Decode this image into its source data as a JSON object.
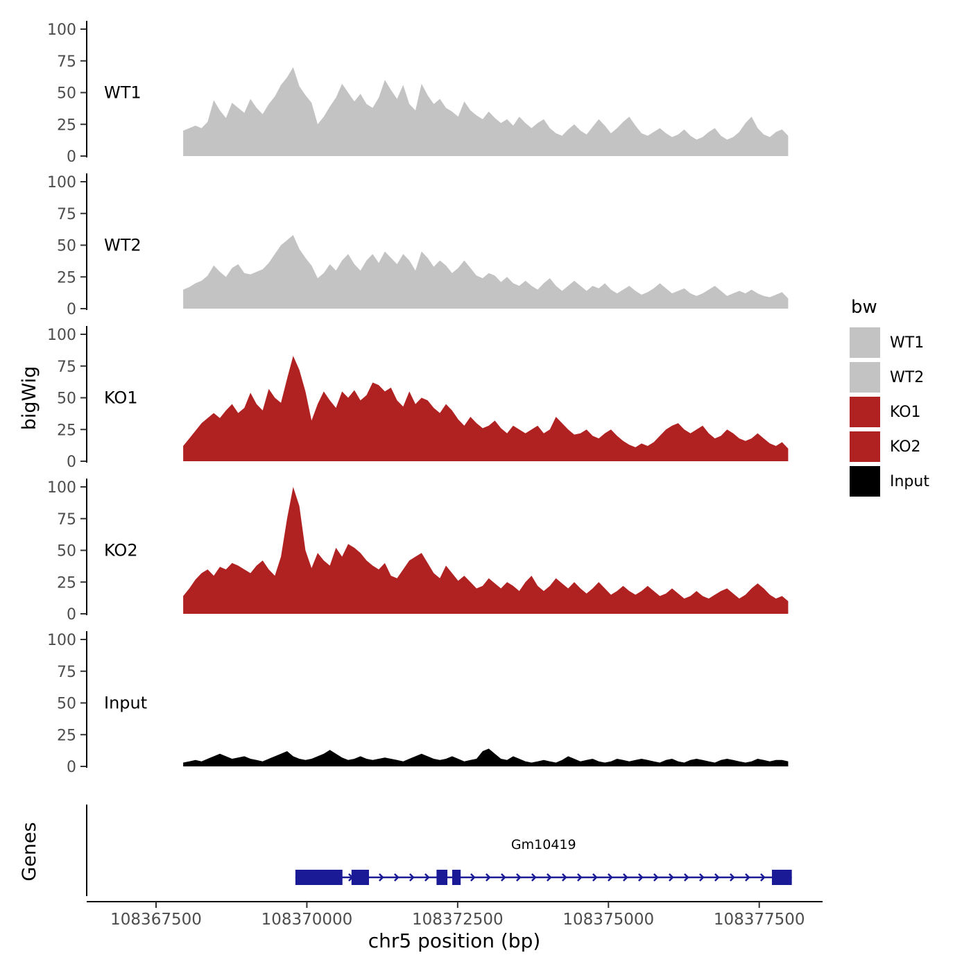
{
  "figure": {
    "ylabel_left": "bigWig",
    "genes_label": "Genes",
    "xlabel": "chr5 position (bp)"
  },
  "legend": {
    "title": "bw",
    "items": [
      {
        "label": "WT1",
        "color": "#c3c3c3"
      },
      {
        "label": "WT2",
        "color": "#c3c3c3"
      },
      {
        "label": "KO1",
        "color": "#b02222"
      },
      {
        "label": "KO2",
        "color": "#b02222"
      },
      {
        "label": "Input",
        "color": "#000000"
      }
    ]
  },
  "chart_data": {
    "type": "area",
    "title": "",
    "xlabel": "chr5 position (bp)",
    "ylabel": "bigWig",
    "xlim": [
      108366350,
      108378550
    ],
    "ylim": [
      0,
      100
    ],
    "x_ticks": [
      108367500,
      108370000,
      108372500,
      108375000,
      108377500
    ],
    "y_ticks": [
      0,
      25,
      50,
      75,
      100
    ],
    "x_start": 108367950,
    "x_end": 108377980,
    "tracks": [
      {
        "name": "WT1",
        "color": "#c3c3c3",
        "values": [
          20,
          22,
          24,
          22,
          27,
          44,
          36,
          30,
          42,
          38,
          34,
          45,
          38,
          33,
          41,
          47,
          56,
          62,
          70,
          55,
          48,
          42,
          25,
          31,
          39,
          46,
          57,
          50,
          43,
          49,
          41,
          38,
          46,
          60,
          52,
          45,
          56,
          41,
          36,
          57,
          48,
          41,
          45,
          38,
          35,
          31,
          43,
          36,
          32,
          29,
          35,
          30,
          26,
          29,
          24,
          31,
          26,
          22,
          26,
          29,
          22,
          18,
          16,
          21,
          25,
          20,
          17,
          23,
          29,
          24,
          18,
          22,
          27,
          31,
          24,
          18,
          16,
          19,
          22,
          18,
          15,
          17,
          21,
          16,
          13,
          15,
          19,
          22,
          16,
          13,
          15,
          19,
          26,
          31,
          22,
          17,
          15,
          19,
          21,
          16
        ]
      },
      {
        "name": "WT2",
        "color": "#c3c3c3",
        "values": [
          15,
          17,
          20,
          22,
          26,
          34,
          29,
          25,
          32,
          35,
          28,
          27,
          29,
          31,
          36,
          43,
          50,
          54,
          58,
          47,
          40,
          34,
          24,
          28,
          35,
          30,
          38,
          43,
          35,
          30,
          38,
          43,
          36,
          45,
          40,
          35,
          43,
          38,
          30,
          45,
          40,
          33,
          38,
          34,
          28,
          32,
          38,
          32,
          26,
          24,
          28,
          26,
          21,
          25,
          20,
          18,
          22,
          18,
          15,
          20,
          24,
          18,
          14,
          18,
          22,
          18,
          14,
          18,
          16,
          20,
          15,
          12,
          15,
          18,
          14,
          11,
          13,
          16,
          20,
          16,
          12,
          14,
          16,
          12,
          10,
          12,
          15,
          18,
          14,
          10,
          12,
          14,
          12,
          15,
          12,
          10,
          9,
          11,
          13,
          8
        ]
      },
      {
        "name": "KO1",
        "color": "#b02222",
        "values": [
          12,
          18,
          24,
          30,
          34,
          38,
          34,
          40,
          45,
          38,
          42,
          54,
          45,
          40,
          57,
          50,
          46,
          65,
          83,
          72,
          55,
          32,
          45,
          55,
          48,
          42,
          55,
          50,
          56,
          48,
          52,
          62,
          60,
          55,
          58,
          48,
          43,
          55,
          45,
          50,
          48,
          42,
          38,
          45,
          40,
          33,
          28,
          35,
          30,
          26,
          28,
          32,
          26,
          22,
          28,
          25,
          22,
          25,
          28,
          22,
          25,
          35,
          30,
          25,
          21,
          22,
          25,
          20,
          18,
          22,
          25,
          20,
          16,
          13,
          11,
          14,
          12,
          15,
          20,
          25,
          28,
          30,
          25,
          22,
          25,
          28,
          22,
          18,
          20,
          25,
          22,
          18,
          16,
          18,
          22,
          18,
          14,
          12,
          15,
          10
        ]
      },
      {
        "name": "KO2",
        "color": "#b02222",
        "values": [
          14,
          20,
          27,
          32,
          35,
          30,
          37,
          35,
          40,
          38,
          35,
          32,
          38,
          42,
          35,
          30,
          45,
          75,
          100,
          85,
          50,
          36,
          48,
          42,
          38,
          52,
          45,
          55,
          52,
          48,
          42,
          38,
          35,
          40,
          30,
          28,
          35,
          42,
          45,
          48,
          40,
          32,
          28,
          38,
          32,
          26,
          30,
          25,
          20,
          22,
          28,
          24,
          20,
          25,
          22,
          18,
          25,
          30,
          22,
          18,
          22,
          28,
          24,
          20,
          25,
          20,
          16,
          20,
          25,
          20,
          15,
          18,
          22,
          18,
          15,
          18,
          22,
          18,
          14,
          16,
          20,
          16,
          12,
          14,
          18,
          14,
          12,
          15,
          18,
          20,
          16,
          12,
          15,
          20,
          24,
          20,
          15,
          12,
          14,
          10
        ]
      },
      {
        "name": "Input",
        "color": "#000000",
        "values": [
          3,
          4,
          5,
          4,
          6,
          8,
          10,
          8,
          6,
          7,
          8,
          6,
          5,
          4,
          6,
          8,
          10,
          12,
          8,
          6,
          5,
          6,
          8,
          10,
          13,
          10,
          7,
          5,
          6,
          8,
          6,
          5,
          6,
          7,
          6,
          5,
          4,
          6,
          8,
          10,
          8,
          6,
          5,
          6,
          8,
          6,
          4,
          5,
          6,
          12,
          14,
          10,
          6,
          5,
          8,
          6,
          4,
          3,
          4,
          5,
          4,
          3,
          5,
          8,
          6,
          4,
          5,
          6,
          4,
          3,
          4,
          6,
          5,
          4,
          5,
          6,
          5,
          4,
          3,
          5,
          6,
          4,
          3,
          5,
          6,
          5,
          4,
          3,
          5,
          6,
          5,
          4,
          3,
          4,
          6,
          5,
          4,
          5,
          5,
          4
        ]
      }
    ],
    "gene": {
      "name": "Gm10419",
      "color": "#1a1a96",
      "strand": "+",
      "start": 108369810,
      "end": 108378040,
      "exons": [
        [
          108369810,
          108370590
        ],
        [
          108370740,
          108371030
        ],
        [
          108372150,
          108372330
        ],
        [
          108372410,
          108372550
        ],
        [
          108377710,
          108378040
        ]
      ]
    }
  }
}
